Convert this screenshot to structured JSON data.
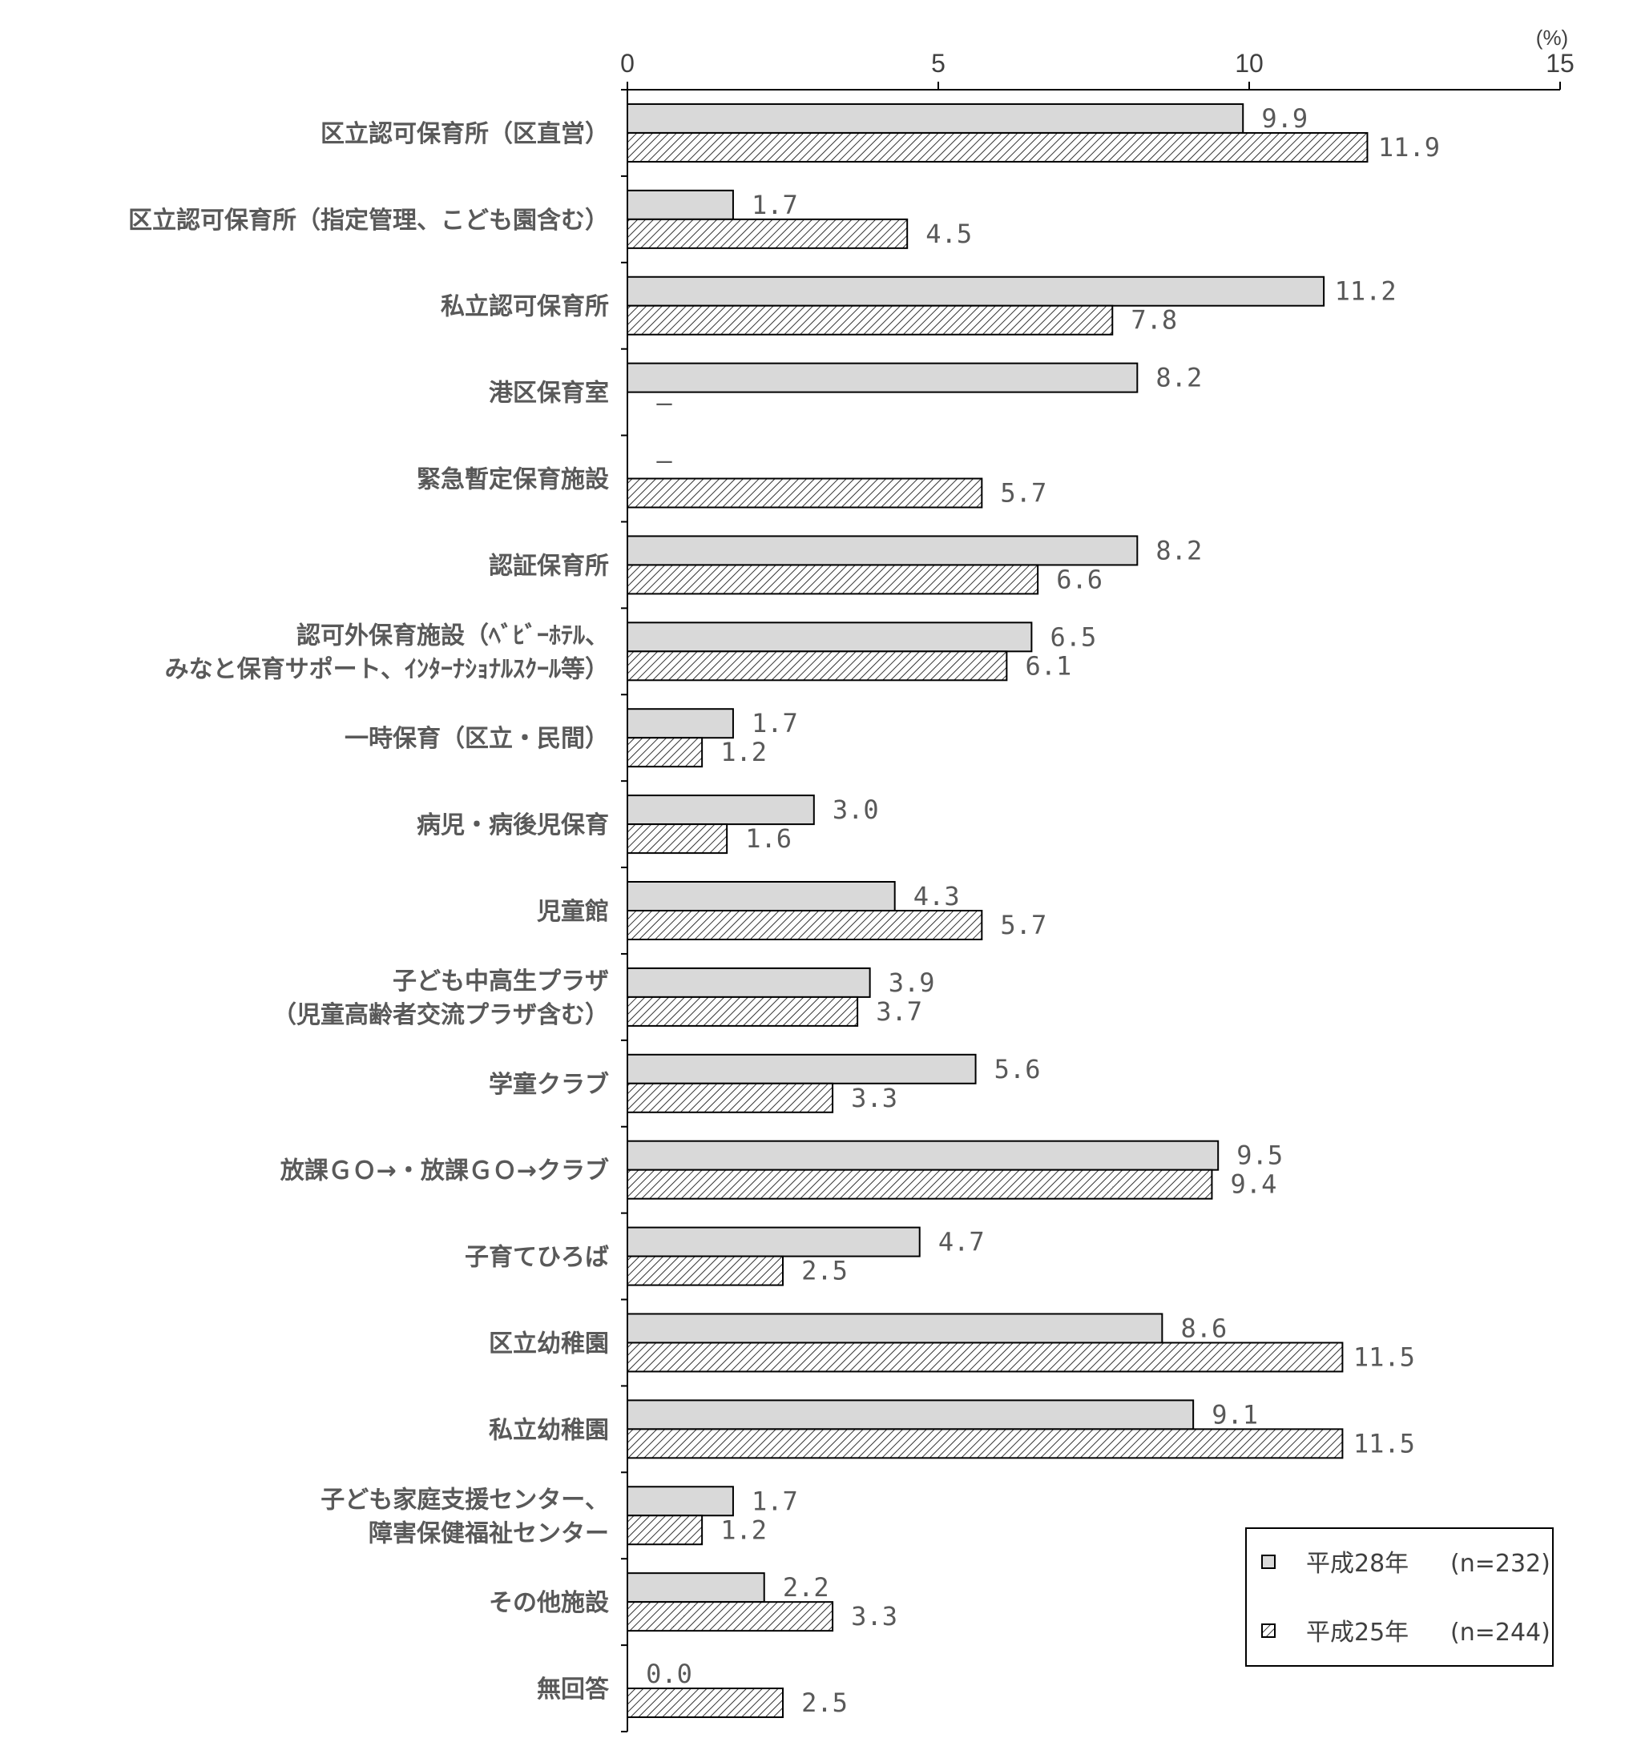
{
  "chart_data": {
    "type": "bar",
    "orientation": "horizontal",
    "unit": "(%)",
    "xlim": [
      0,
      15
    ],
    "ticks": [
      "0",
      "5",
      "10",
      "15"
    ],
    "grid": false,
    "legend_position": "bottom-right",
    "categories": [
      [
        "区立認可保育所（区直営）"
      ],
      [
        "区立認可保育所（指定管理、こども園含む）"
      ],
      [
        "私立認可保育所"
      ],
      [
        "港区保育室"
      ],
      [
        "緊急暫定保育施設"
      ],
      [
        "認証保育所"
      ],
      [
        "認可外保育施設（ﾍﾞﾋﾞｰﾎﾃﾙ、",
        "みなと保育サポート、ｲﾝﾀｰﾅｼｮﾅﾙｽｸｰﾙ等）"
      ],
      [
        "一時保育（区立・民間）"
      ],
      [
        "病児・病後児保育"
      ],
      [
        "児童館"
      ],
      [
        "子ども中高生プラザ",
        "（児童高齢者交流プラザ含む）"
      ],
      [
        "学童クラブ"
      ],
      [
        "放課ＧＯ→・放課ＧＯ→クラブ"
      ],
      [
        "子育てひろば"
      ],
      [
        "区立幼稚園"
      ],
      [
        "私立幼稚園"
      ],
      [
        "子ども家庭支援センター、",
        "障害保健福祉センター"
      ],
      [
        "その他施設"
      ],
      [
        "無回答"
      ]
    ],
    "series": [
      {
        "name": "平成28年",
        "n_label": "(n=232)",
        "fill": "#d9d9d9",
        "pattern": "solid",
        "values": [
          9.9,
          1.7,
          11.2,
          8.2,
          null,
          8.2,
          6.5,
          1.7,
          3.0,
          4.3,
          3.9,
          5.6,
          9.5,
          4.7,
          8.6,
          9.1,
          1.7,
          2.2,
          0.0
        ],
        "labels": [
          "9.9",
          "1.7",
          "11.2",
          "8.2",
          "―",
          "8.2",
          "6.5",
          "1.7",
          "3.0",
          "4.3",
          "3.9",
          "5.6",
          "9.5",
          "4.7",
          "8.6",
          "9.1",
          "1.7",
          "2.2",
          "0.0"
        ]
      },
      {
        "name": "平成25年",
        "n_label": "(n=244)",
        "fill": "#ffffff",
        "pattern": "diagonal-hatch",
        "values": [
          11.9,
          4.5,
          7.8,
          null,
          5.7,
          6.6,
          6.1,
          1.2,
          1.6,
          5.7,
          3.7,
          3.3,
          9.4,
          2.5,
          11.5,
          11.5,
          1.2,
          3.3,
          2.5
        ],
        "labels": [
          "11.9",
          "4.5",
          "7.8",
          "―",
          "5.7",
          "6.6",
          "6.1",
          "1.2",
          "1.6",
          "5.7",
          "3.7",
          "3.3",
          "9.4",
          "2.5",
          "11.5",
          "11.5",
          "1.2",
          "3.3",
          "2.5"
        ]
      }
    ]
  }
}
